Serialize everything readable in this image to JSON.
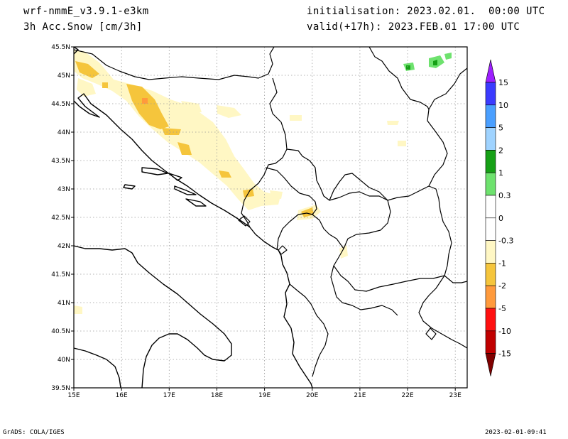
{
  "header": {
    "model": "wrf-nmmE_v3.9.1-e3km",
    "variable": "3h Acc.Snow [cm/3h]",
    "initialisation": "initialisation: 2023.02.01.  00:00 UTC",
    "valid": "valid(+17h): 2023.FEB.01 17:00 UTC"
  },
  "map": {
    "lon_range": [
      15,
      23.25
    ],
    "lat_range": [
      39.5,
      45.5
    ],
    "lon_ticks": [
      "15E",
      "16E",
      "17E",
      "18E",
      "19E",
      "20E",
      "21E",
      "22E",
      "23E"
    ],
    "lat_ticks": [
      "45.5N",
      "45N",
      "44.5N",
      "44N",
      "43.5N",
      "43N",
      "42.5N",
      "42N",
      "41.5N",
      "41N",
      "40.5N",
      "40N",
      "39.5N"
    ],
    "grid": true
  },
  "colorbar": {
    "labels": [
      "15",
      "10",
      "5",
      "2",
      "1",
      "0.3",
      "0",
      "-0.3",
      "-1",
      "-2",
      "-5",
      "-10",
      "-15"
    ],
    "colors": [
      "#9d1fff",
      "#3b3bff",
      "#4a9fff",
      "#9fd3ff",
      "#16a016",
      "#6ee26e",
      "#ffffff",
      "#ffffff",
      "#fff7c4",
      "#f5c53c",
      "#ff9a3c",
      "#ff1010",
      "#c00000",
      "#800000"
    ]
  },
  "footer": {
    "left": "GrADS: COLA/IGES",
    "right": "2023-02-01-09:41"
  }
}
